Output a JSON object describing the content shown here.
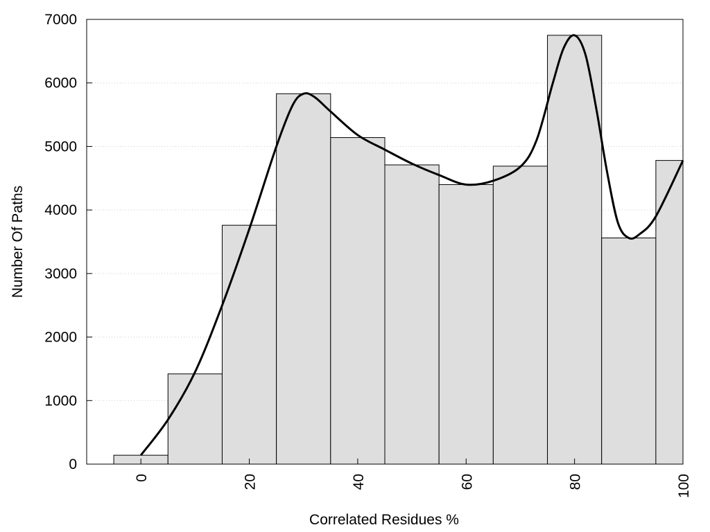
{
  "chart_data": {
    "type": "bar",
    "title": "",
    "xlabel": "Correlated Residues %",
    "ylabel": "Number Of Paths",
    "x": [
      0,
      10,
      20,
      30,
      40,
      50,
      60,
      70,
      80,
      90,
      100
    ],
    "values": [
      140,
      1420,
      3760,
      5830,
      5140,
      4710,
      4400,
      4690,
      6750,
      3560,
      4780
    ],
    "bin_width": 10,
    "xlim": [
      -10,
      100
    ],
    "ylim": [
      0,
      7000
    ],
    "xticks": [
      0,
      20,
      40,
      60,
      80,
      100
    ],
    "yticks": [
      0,
      1000,
      2000,
      3000,
      4000,
      5000,
      6000,
      7000
    ],
    "smooth_curve": [
      [
        0,
        140
      ],
      [
        5,
        700
      ],
      [
        10,
        1450
      ],
      [
        15,
        2500
      ],
      [
        20,
        3700
      ],
      [
        25,
        5000
      ],
      [
        28,
        5650
      ],
      [
        30,
        5830
      ],
      [
        32,
        5780
      ],
      [
        35,
        5550
      ],
      [
        40,
        5180
      ],
      [
        45,
        4950
      ],
      [
        50,
        4730
      ],
      [
        55,
        4550
      ],
      [
        60,
        4400
      ],
      [
        65,
        4460
      ],
      [
        70,
        4680
      ],
      [
        73,
        5100
      ],
      [
        76,
        6000
      ],
      [
        78,
        6550
      ],
      [
        80,
        6750
      ],
      [
        82,
        6450
      ],
      [
        84,
        5600
      ],
      [
        86,
        4600
      ],
      [
        88,
        3800
      ],
      [
        90,
        3560
      ],
      [
        92,
        3620
      ],
      [
        95,
        3900
      ],
      [
        100,
        4780
      ]
    ],
    "colors": {
      "bar_fill": "#dedede",
      "bar_stroke": "#000000",
      "curve": "#000000",
      "grid": "#cccccc"
    },
    "grid": "horizontal-dotted",
    "legend": "none"
  }
}
